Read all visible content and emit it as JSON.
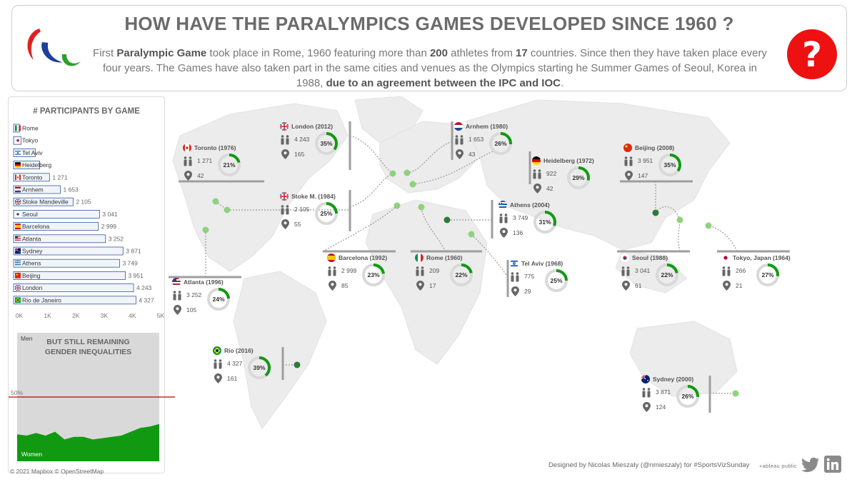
{
  "header": {
    "title": "HOW HAVE THE PARALYMPICS GAMES DEVELOPED SINCE 1960 ?",
    "intro": [
      {
        "t": "First ",
        "b": false
      },
      {
        "t": "Paralympic Game",
        "b": true
      },
      {
        "t": " took place in Rome, 1960 featuring more than ",
        "b": false
      },
      {
        "t": "200",
        "b": true
      },
      {
        "t": " athletes from ",
        "b": false
      },
      {
        "t": "17",
        "b": true
      },
      {
        "t": " countries. Since then they have taken place every four years. The Games have also taken part in the same cities and venues as the Olympics starting he Summer Games of Seoul, Korea in 1988, ",
        "b": false
      },
      {
        "t": "due to an agreement between the IPC and IOC",
        "b": true
      },
      {
        "t": ".",
        "b": false
      }
    ]
  },
  "icons": {
    "logo": "paralympic-agitos-icon",
    "question": "question-mark-icon",
    "person": "person-pair-icon",
    "pin": "location-pin-icon"
  },
  "colors": {
    "accent_green": "#119a11",
    "dark_green": "#2d7a36",
    "light_green": "#8fd27d",
    "bar_fill": "#f1f4fb",
    "bar_stroke": "#34599e",
    "ref_line": "#c00000",
    "donut_track": "#d9d9d9"
  },
  "chart_data": [
    {
      "type": "bar",
      "title": "# PARTICIPANTS BY GAME",
      "orientation": "horizontal",
      "categories": [
        "Rome",
        "Tokyo",
        "Tel Aviv",
        "Heidelberg",
        "Toronto",
        "Arnhem",
        "Stoke Mandeville",
        "Seoul",
        "Barcelona",
        "Atlanta",
        "Sydney",
        "Athens",
        "Beijing",
        "London",
        "Rio de Janeiro"
      ],
      "values": [
        209,
        266,
        775,
        922,
        1271,
        1653,
        2105,
        3041,
        2999,
        3252,
        3871,
        3749,
        3951,
        4243,
        4327
      ],
      "value_labels": [
        "",
        "",
        "",
        "",
        "1 271",
        "1 653",
        "2 105",
        "3 041",
        "2 999",
        "3 252",
        "3 871",
        "3 749",
        "3 951",
        "4 243",
        "4 327"
      ],
      "xlim": [
        0,
        5000
      ],
      "xticks": [
        "0K",
        "1K",
        "2K",
        "3K",
        "4K",
        "5K"
      ]
    },
    {
      "type": "area",
      "title": "BUT STILL REMAINING\nGENDER INEQUALITIES",
      "top_label": "Men",
      "bottom_label": "Women",
      "ref_label": "50%",
      "ref_value": 50,
      "ylim": [
        0,
        100
      ],
      "series": [
        {
          "values": [
            21,
            20,
            22,
            20,
            23,
            17,
            19,
            19,
            17,
            18,
            19,
            20,
            23,
            26,
            27,
            29
          ]
        }
      ]
    }
  ],
  "games": [
    {
      "id": "london-2012",
      "title": "London (2012)",
      "athletes": "4 243",
      "countries": "165",
      "pct": 35,
      "pct_label": "35%",
      "flag": "uk"
    },
    {
      "id": "arnhem-1980",
      "title": "Arnhem (1980)",
      "athletes": "1 653",
      "countries": "43",
      "pct": 26,
      "pct_label": "26%",
      "flag": "nl"
    },
    {
      "id": "toronto-1976",
      "title": "Toronto (1976)",
      "athletes": "1 271",
      "countries": "42",
      "pct": 21,
      "pct_label": "21%",
      "flag": "ca"
    },
    {
      "id": "heidelberg-1972",
      "title": "Heidelberg (1972)",
      "athletes": "922",
      "countries": "42",
      "pct": 29,
      "pct_label": "29%",
      "flag": "de"
    },
    {
      "id": "beijing-2008",
      "title": "Beijing (2008)",
      "athletes": "3 951",
      "countries": "147",
      "pct": 35,
      "pct_label": "35%",
      "flag": "cn"
    },
    {
      "id": "stoke-1984",
      "title": "Stoke M. (1984)",
      "athletes": "2 105",
      "countries": "55",
      "pct": 25,
      "pct_label": "25%",
      "flag": "uk"
    },
    {
      "id": "athens-2004",
      "title": "Athens (2004)",
      "athletes": "3 749",
      "countries": "136",
      "pct": 31,
      "pct_label": "31%",
      "flag": "gr"
    },
    {
      "id": "barcelona-1992",
      "title": "Barcelona (1992)",
      "athletes": "2 999",
      "countries": "85",
      "pct": 23,
      "pct_label": "23%",
      "flag": "es"
    },
    {
      "id": "rome-1960",
      "title": "Rome (1960)",
      "athletes": "209",
      "countries": "17",
      "pct": 22,
      "pct_label": "22%",
      "flag": "it"
    },
    {
      "id": "telaviv-1968",
      "title": "Tel Aviv (1968)",
      "athletes": "775",
      "countries": "29",
      "pct": 25,
      "pct_label": "25%",
      "flag": "il"
    },
    {
      "id": "seoul-1988",
      "title": "Seoul (1988)",
      "athletes": "3 041",
      "countries": "61",
      "pct": 22,
      "pct_label": "22%",
      "flag": "kr"
    },
    {
      "id": "tokyo-1964",
      "title": "Tokyo, Japan (1964)",
      "athletes": "266",
      "countries": "21",
      "pct": 27,
      "pct_label": "27%",
      "flag": "jp"
    },
    {
      "id": "atlanta-1996",
      "title": "Atlanta (1996)",
      "athletes": "3 252",
      "countries": "105",
      "pct": 24,
      "pct_label": "24%",
      "flag": "us"
    },
    {
      "id": "rio-2016",
      "title": "Rio (2016)",
      "athletes": "4 327",
      "countries": "161",
      "pct": 39,
      "pct_label": "39%",
      "flag": "br"
    },
    {
      "id": "sydney-2000",
      "title": "Sydney (2000)",
      "athletes": "3 871",
      "countries": "124",
      "pct": 26,
      "pct_label": "26%",
      "flag": "au"
    }
  ],
  "footer": {
    "credit": "Designed by Nicolas Mieszaly (@nmieszaly) for #SportsVizSunday",
    "tableau": "+ableau public",
    "map_credit": "© 2021 Mapbox © OpenStreetMap",
    "twitter_icon": "twitter-icon",
    "linkedin_icon": "linkedin-icon"
  }
}
